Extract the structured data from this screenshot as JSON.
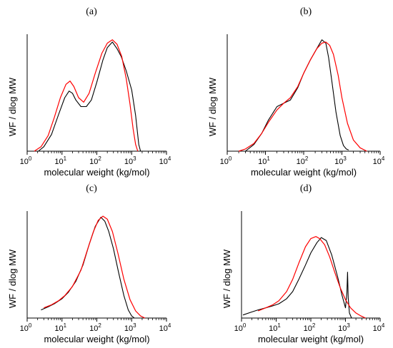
{
  "colors": {
    "measured": "#000000",
    "model": "#ff0000",
    "axis": "#000000"
  },
  "chart_data": [
    {
      "label": "(a)",
      "type": "line",
      "xlabel": "molecular weight (kg/mol)",
      "ylabel": "WF / dlog MW",
      "x_scale": "log",
      "xlim": [
        1,
        10000
      ],
      "ylim": [
        0,
        1.05
      ],
      "xticks": [
        {
          "value": 1,
          "base": "10",
          "exp": "0"
        },
        {
          "value": 10,
          "base": "10",
          "exp": "1"
        },
        {
          "value": 100,
          "base": "10",
          "exp": "2"
        },
        {
          "value": 1000,
          "base": "10",
          "exp": "3"
        },
        {
          "value": 10000,
          "base": "10",
          "exp": "4"
        }
      ],
      "series": [
        {
          "key": "measured",
          "x": [
            2.1,
            3,
            5,
            8,
            12,
            16,
            20,
            25,
            35,
            50,
            70,
            100,
            150,
            200,
            280,
            380,
            500,
            700,
            1000,
            1300,
            1600,
            1800
          ],
          "y": [
            0.0,
            0.04,
            0.15,
            0.33,
            0.48,
            0.54,
            0.52,
            0.46,
            0.4,
            0.4,
            0.46,
            0.62,
            0.82,
            0.93,
            0.98,
            0.92,
            0.85,
            0.72,
            0.55,
            0.32,
            0.06,
            0.0
          ]
        },
        {
          "key": "model",
          "x": [
            1.6,
            2.5,
            4,
            6,
            9,
            13,
            17,
            22,
            30,
            42,
            60,
            90,
            140,
            200,
            280,
            380,
            520,
            700,
            900,
            1100,
            1300,
            1500
          ],
          "y": [
            0.0,
            0.04,
            0.14,
            0.3,
            0.48,
            0.6,
            0.63,
            0.58,
            0.48,
            0.44,
            0.52,
            0.7,
            0.88,
            0.97,
            1.0,
            0.96,
            0.85,
            0.65,
            0.42,
            0.2,
            0.06,
            0.0
          ]
        }
      ]
    },
    {
      "label": "(b)",
      "type": "line",
      "xlabel": "molecular weight (kg/mol)",
      "ylabel": "WF / dlog MW",
      "x_scale": "log",
      "xlim": [
        1,
        10000
      ],
      "ylim": [
        0,
        1.05
      ],
      "xticks": [
        {
          "value": 1,
          "base": "10",
          "exp": "0"
        },
        {
          "value": 10,
          "base": "10",
          "exp": "1"
        },
        {
          "value": 100,
          "base": "10",
          "exp": "2"
        },
        {
          "value": 1000,
          "base": "10",
          "exp": "3"
        },
        {
          "value": 10000,
          "base": "10",
          "exp": "4"
        }
      ],
      "series": [
        {
          "key": "measured",
          "x": [
            3,
            5,
            8,
            12,
            20,
            30,
            45,
            70,
            100,
            150,
            220,
            300,
            380,
            450,
            550,
            700,
            900,
            1100,
            1300,
            1500
          ],
          "y": [
            0.0,
            0.06,
            0.16,
            0.28,
            0.4,
            0.43,
            0.46,
            0.57,
            0.7,
            0.82,
            0.92,
            1.0,
            0.97,
            0.84,
            0.62,
            0.35,
            0.14,
            0.05,
            0.02,
            0.01
          ]
        },
        {
          "key": "model",
          "x": [
            2,
            3,
            5,
            8,
            12,
            20,
            30,
            45,
            70,
            100,
            150,
            220,
            300,
            380,
            480,
            600,
            800,
            1000,
            1400,
            2000,
            3000,
            4500
          ],
          "y": [
            0.0,
            0.02,
            0.07,
            0.16,
            0.26,
            0.37,
            0.43,
            0.48,
            0.58,
            0.7,
            0.82,
            0.92,
            0.97,
            0.98,
            0.95,
            0.87,
            0.68,
            0.48,
            0.25,
            0.1,
            0.03,
            0.0
          ]
        }
      ]
    },
    {
      "label": "(c)",
      "type": "line",
      "xlabel": "molecular weight (kg/mol)",
      "ylabel": "WF / dlog MW",
      "x_scale": "log",
      "xlim": [
        1,
        10000
      ],
      "ylim": [
        0,
        1.05
      ],
      "xticks": [
        {
          "value": 1,
          "base": "10",
          "exp": "0"
        },
        {
          "value": 10,
          "base": "10",
          "exp": "1"
        },
        {
          "value": 100,
          "base": "10",
          "exp": "2"
        },
        {
          "value": 1000,
          "base": "10",
          "exp": "3"
        },
        {
          "value": 10000,
          "base": "10",
          "exp": "4"
        }
      ],
      "series": [
        {
          "key": "measured",
          "x": [
            2.5,
            4,
            6,
            10,
            15,
            25,
            40,
            60,
            90,
            130,
            170,
            220,
            300,
            420,
            600,
            800,
            1000,
            1200
          ],
          "y": [
            0.08,
            0.11,
            0.14,
            0.19,
            0.25,
            0.36,
            0.52,
            0.72,
            0.9,
            0.99,
            0.95,
            0.85,
            0.68,
            0.45,
            0.22,
            0.08,
            0.02,
            0.0
          ]
        },
        {
          "key": "model",
          "x": [
            3,
            5,
            8,
            12,
            20,
            35,
            55,
            80,
            110,
            150,
            200,
            280,
            400,
            600,
            900,
            1300,
            1800,
            2400
          ],
          "y": [
            0.1,
            0.13,
            0.17,
            0.22,
            0.31,
            0.47,
            0.68,
            0.85,
            0.96,
            1.0,
            0.97,
            0.85,
            0.64,
            0.38,
            0.18,
            0.07,
            0.02,
            0.0
          ]
        }
      ]
    },
    {
      "label": "(d)",
      "type": "line",
      "xlabel": "molecular weight (kg/mol)",
      "ylabel": "WF / dlog MW",
      "x_scale": "log",
      "xlim": [
        1,
        10000
      ],
      "ylim": [
        0,
        1.05
      ],
      "xticks": [
        {
          "value": 1,
          "base": "10",
          "exp": "0"
        },
        {
          "value": 10,
          "base": "10",
          "exp": "1"
        },
        {
          "value": 100,
          "base": "10",
          "exp": "2"
        },
        {
          "value": 1000,
          "base": "10",
          "exp": "3"
        },
        {
          "value": 10000,
          "base": "10",
          "exp": "4"
        }
      ],
      "series": [
        {
          "key": "measured",
          "x": [
            1.1,
            2,
            3,
            5,
            8,
            12,
            20,
            30,
            45,
            70,
            100,
            150,
            200,
            280,
            400,
            600,
            800,
            1000,
            1100,
            1150,
            1200,
            1300,
            1500
          ],
          "y": [
            0.03,
            0.06,
            0.08,
            0.1,
            0.12,
            0.14,
            0.19,
            0.26,
            0.38,
            0.52,
            0.64,
            0.74,
            0.79,
            0.76,
            0.62,
            0.4,
            0.22,
            0.1,
            0.25,
            0.45,
            0.2,
            0.05,
            0.0
          ]
        },
        {
          "key": "model",
          "x": [
            3,
            5,
            8,
            12,
            20,
            30,
            45,
            70,
            100,
            140,
            180,
            250,
            350,
            500,
            700,
            1000,
            1400,
            2000,
            2800,
            3800
          ],
          "y": [
            0.07,
            0.1,
            0.13,
            0.17,
            0.26,
            0.38,
            0.54,
            0.7,
            0.78,
            0.8,
            0.78,
            0.72,
            0.6,
            0.44,
            0.3,
            0.18,
            0.1,
            0.05,
            0.02,
            0.0
          ]
        }
      ]
    }
  ]
}
